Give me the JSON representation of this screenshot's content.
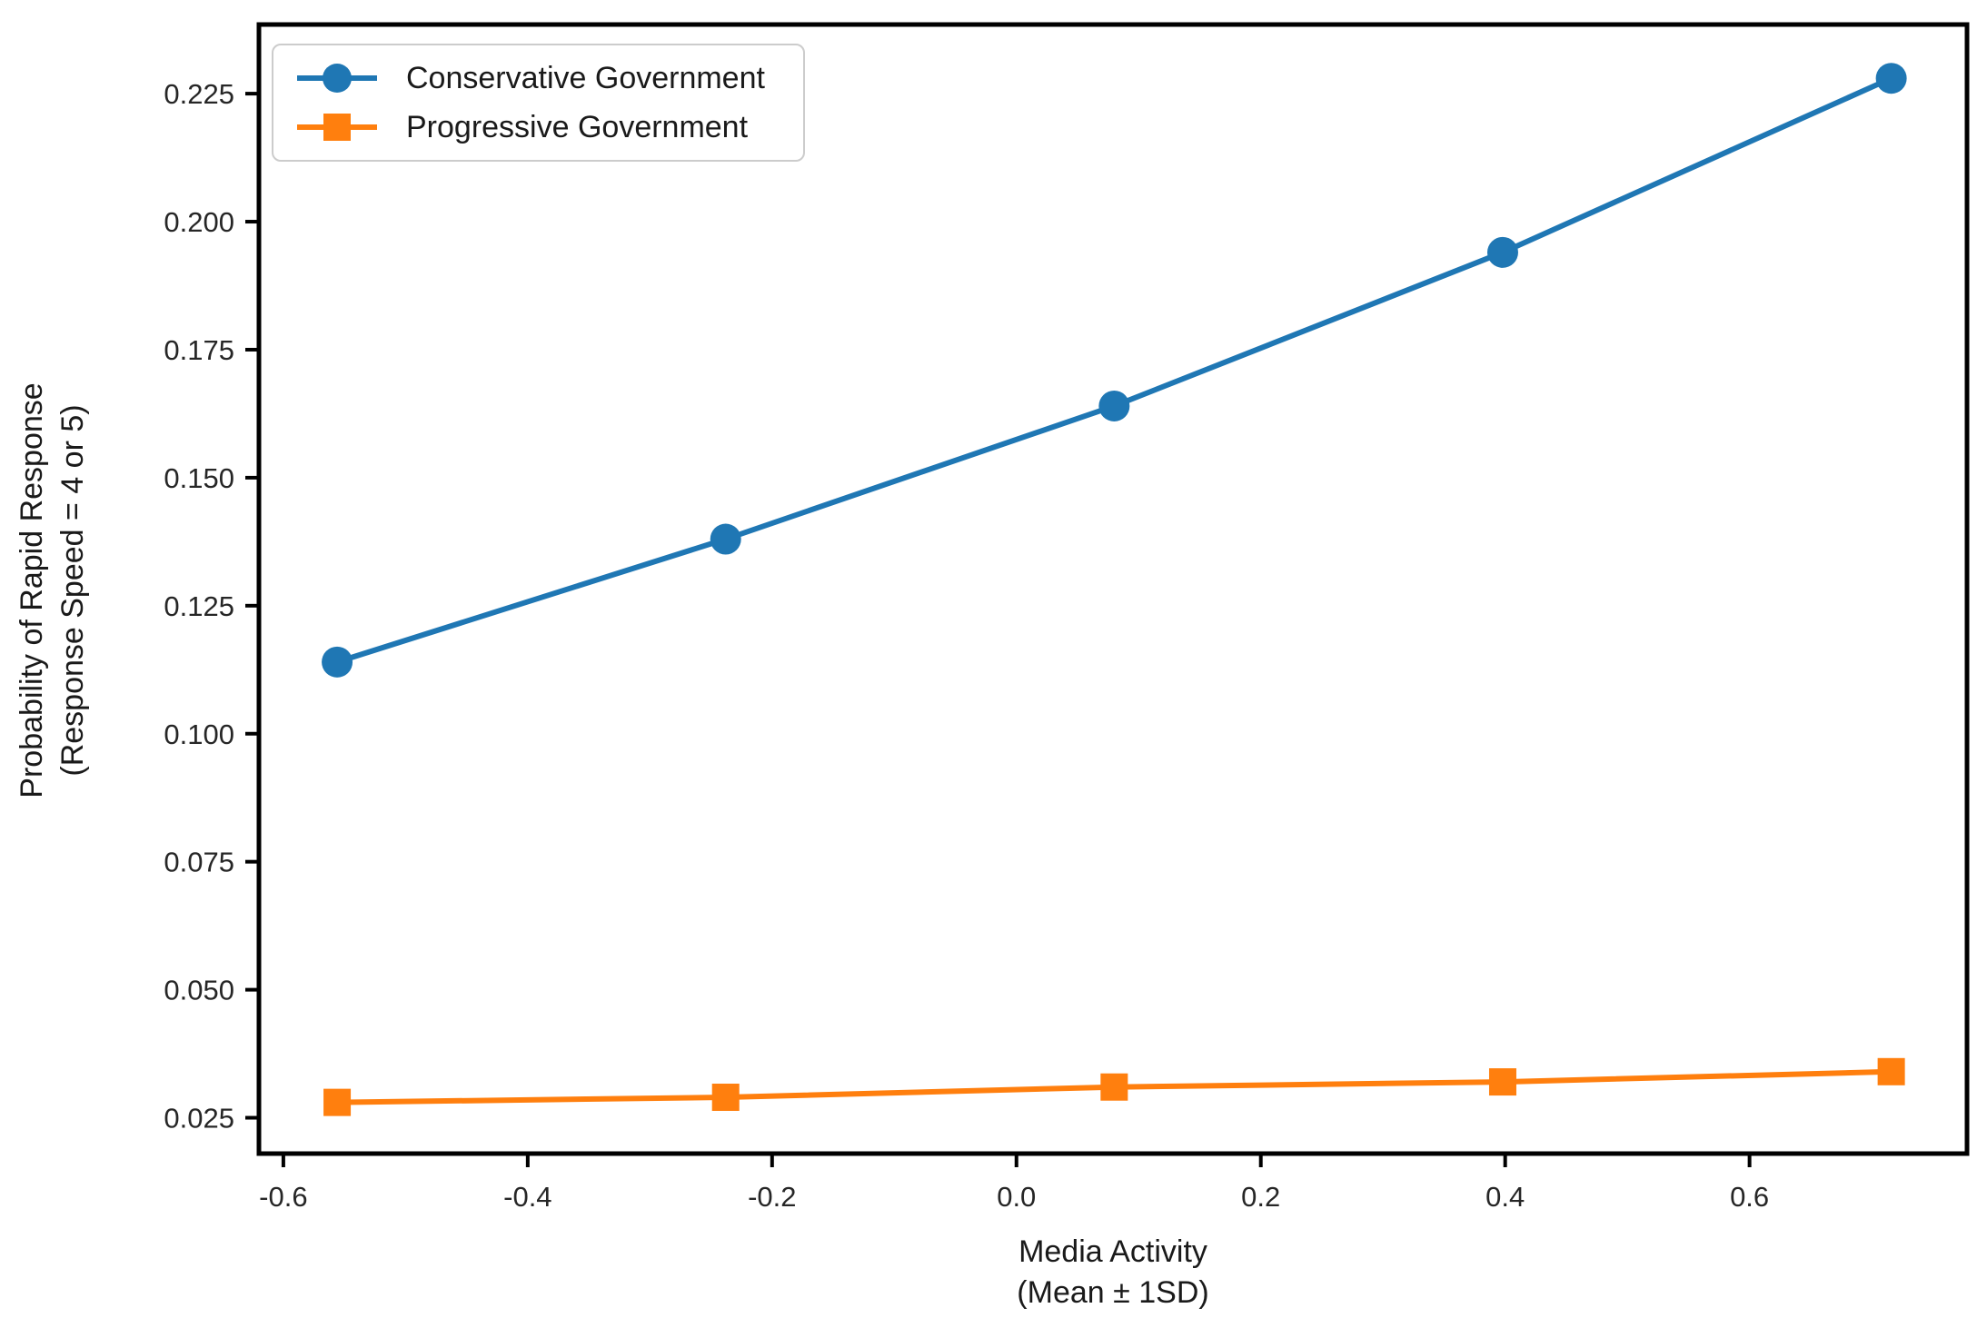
{
  "accent_colors": {
    "conservative_blue": "#1f77b4",
    "progressive_orange": "#ff7f0e",
    "axis_black": "#000000",
    "tick_text": "#262626",
    "legend_border": "#cccccc"
  },
  "chart_data": {
    "type": "line",
    "title": "",
    "xlabel_line1": "Media Activity",
    "xlabel_line2": "(Mean ± 1SD)",
    "ylabel_line1": "Probability of Rapid Response",
    "ylabel_line2": "(Response Speed = 4 or 5)",
    "xlim": [
      -0.62,
      0.778
    ],
    "ylim": [
      0.018,
      0.2385
    ],
    "xticks": [
      -0.6,
      -0.4,
      -0.2,
      0.0,
      0.2,
      0.4,
      0.6
    ],
    "yticks": [
      0.025,
      0.05,
      0.075,
      0.1,
      0.125,
      0.15,
      0.175,
      0.2,
      0.225
    ],
    "x": [
      -0.556,
      -0.238,
      0.08,
      0.398,
      0.716
    ],
    "series": [
      {
        "name": "Conservative Government",
        "color": "#1f77b4",
        "marker": "circle",
        "values": [
          0.114,
          0.138,
          0.164,
          0.194,
          0.228
        ]
      },
      {
        "name": "Progressive Government",
        "color": "#ff7f0e",
        "marker": "square",
        "values": [
          0.028,
          0.029,
          0.031,
          0.032,
          0.034
        ]
      }
    ],
    "legend_position": "upper-left",
    "grid": false
  }
}
